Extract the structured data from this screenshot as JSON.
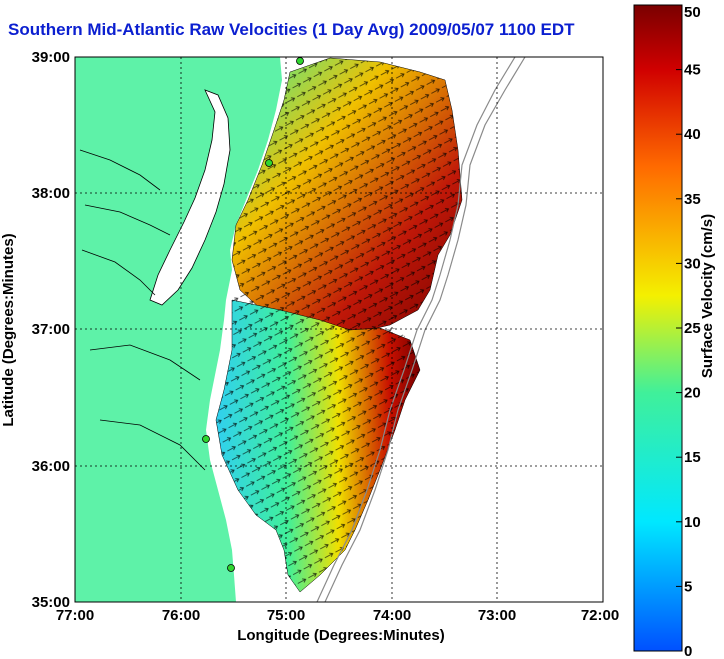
{
  "title": "Southern Mid-Atlantic Raw Velocities (1 Day Avg) 2009/05/07 1100 EDT",
  "x_axis": {
    "label": "Longitude (Degrees:Minutes)",
    "ticks": [
      "77:00",
      "76:00",
      "75:00",
      "74:00",
      "73:00",
      "72:00"
    ]
  },
  "y_axis": {
    "label": "Latitude (Degrees:Minutes)",
    "ticks": [
      "39:00",
      "38:00",
      "37:00",
      "36:00",
      "35:00"
    ]
  },
  "colorbar": {
    "label": "Surface Velocity (cm/s)",
    "ticks": [
      "50",
      "45",
      "40",
      "35",
      "30",
      "25",
      "20",
      "15",
      "10",
      "5",
      "0"
    ],
    "range": [
      0,
      50
    ]
  },
  "colors": {
    "land": "#5ef2a8",
    "title": "#0b1fd0",
    "sites": "#2fd62f"
  }
}
